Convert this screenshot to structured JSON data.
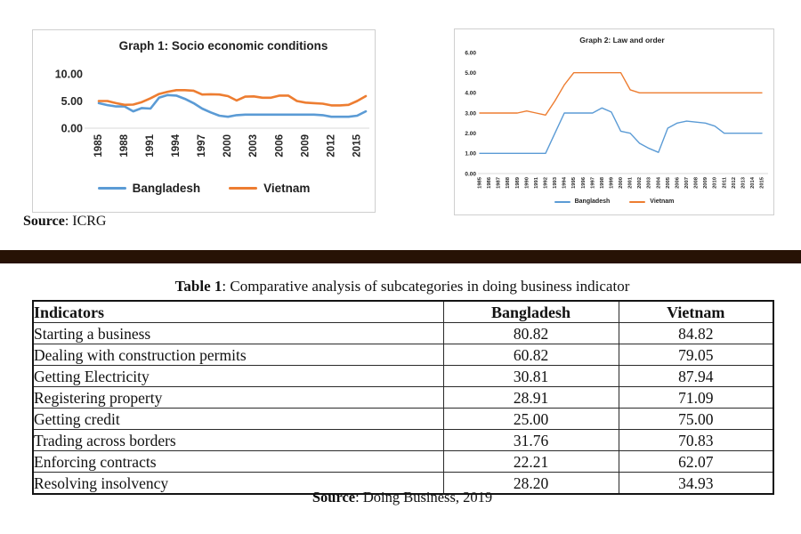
{
  "colors": {
    "bangladesh_line": "#5B9BD5",
    "vietnam_line": "#ED7D31",
    "divider_bar": "#271205",
    "axis_text": "#262626",
    "grid_line": "#d9d9d9"
  },
  "chart_data": [
    {
      "id": "graph1",
      "type": "line",
      "title": "Graph 1: Socio economic conditions",
      "x": [
        1985,
        1986,
        1987,
        1988,
        1989,
        1990,
        1991,
        1992,
        1993,
        1994,
        1995,
        1996,
        1997,
        1998,
        1999,
        2000,
        2001,
        2002,
        2003,
        2004,
        2005,
        2006,
        2007,
        2008,
        2009,
        2010,
        2011,
        2012,
        2013,
        2014,
        2015,
        2016
      ],
      "x_tick_labels": [
        "1985",
        "1988",
        "1991",
        "1994",
        "1997",
        "2000",
        "2003",
        "2006",
        "2009",
        "2012",
        "2015"
      ],
      "y_ticks": [
        0,
        5,
        10
      ],
      "y_tick_labels": [
        "0.00",
        "5.00",
        "10.00"
      ],
      "ylim": [
        0,
        10
      ],
      "grid": "baseline-only",
      "legend_position": "bottom",
      "series": [
        {
          "name": "Bangladesh",
          "color": "#5B9BD5",
          "values": [
            4.6,
            4.25,
            4.0,
            4.0,
            3.1,
            3.7,
            3.6,
            5.6,
            6.1,
            6.0,
            5.4,
            4.6,
            3.6,
            2.9,
            2.3,
            2.1,
            2.4,
            2.5,
            2.5,
            2.5,
            2.5,
            2.5,
            2.5,
            2.5,
            2.5,
            2.5,
            2.4,
            2.1,
            2.1,
            2.1,
            2.3,
            3.1
          ]
        },
        {
          "name": "Vietnam",
          "color": "#ED7D31",
          "values": [
            5.0,
            5.0,
            4.6,
            4.3,
            4.35,
            4.8,
            5.5,
            6.3,
            6.7,
            7.0,
            7.0,
            6.9,
            6.2,
            6.25,
            6.2,
            5.9,
            5.1,
            5.8,
            5.85,
            5.6,
            5.6,
            6.0,
            6.0,
            5.0,
            4.7,
            4.6,
            4.5,
            4.2,
            4.2,
            4.3,
            5.0,
            5.9
          ]
        }
      ],
      "source_label": "Source",
      "source_value": ": ICRG"
    },
    {
      "id": "graph2",
      "type": "line",
      "title": "Graph 2: Law and order",
      "x": [
        1985,
        1986,
        1987,
        1988,
        1989,
        1990,
        1991,
        1992,
        1993,
        1994,
        1995,
        1996,
        1997,
        1998,
        1999,
        2000,
        2001,
        2002,
        2003,
        2004,
        2005,
        2006,
        2007,
        2008,
        2009,
        2010,
        2011,
        2012,
        2013,
        2014,
        2015
      ],
      "x_tick_labels": [
        "1985",
        "1986",
        "1987",
        "1988",
        "1989",
        "1990",
        "1991",
        "1992",
        "1993",
        "1994",
        "1995",
        "1996",
        "1997",
        "1998",
        "1999",
        "2000",
        "2001",
        "2002",
        "2003",
        "2004",
        "2005",
        "2006",
        "2007",
        "2008",
        "2009",
        "2010",
        "2011",
        "2012",
        "2013",
        "2014",
        "2015"
      ],
      "y_ticks": [
        0,
        1,
        2,
        3,
        4,
        5,
        6
      ],
      "y_tick_labels": [
        "0.00",
        "1.00",
        "2.00",
        "3.00",
        "4.00",
        "5.00",
        "6.00"
      ],
      "ylim": [
        0,
        6
      ],
      "grid": "baseline-only",
      "legend_position": "bottom",
      "series": [
        {
          "name": "Bangladesh",
          "color": "#5B9BD5",
          "values": [
            1,
            1,
            1,
            1,
            1,
            1,
            1,
            1,
            2,
            3,
            3,
            3,
            3,
            3.25,
            3.05,
            2.1,
            2,
            1.5,
            1.25,
            1.05,
            2.25,
            2.5,
            2.6,
            2.55,
            2.5,
            2.35,
            2,
            2,
            2,
            2,
            2
          ]
        },
        {
          "name": "Vietnam",
          "color": "#ED7D31",
          "values": [
            3,
            3,
            3,
            3,
            3,
            3.1,
            3,
            2.9,
            3.6,
            4.4,
            5,
            5,
            5,
            5,
            5,
            5,
            4.15,
            4,
            4,
            4,
            4,
            4,
            4,
            4,
            4,
            4,
            4,
            4,
            4,
            4,
            4
          ]
        }
      ]
    }
  ],
  "graph1_source": {
    "label": "Source",
    "value": ": ICRG"
  },
  "table": {
    "title_bold": "Table 1",
    "title_rest": ": Comparative analysis of subcategories in doing business indicator",
    "columns": [
      "Indicators",
      "Bangladesh",
      "Vietnam"
    ],
    "rows": [
      [
        "Starting a business",
        "80.82",
        "84.82"
      ],
      [
        "Dealing with construction permits",
        "60.82",
        "79.05"
      ],
      [
        "Getting Electricity",
        "30.81",
        "87.94"
      ],
      [
        "Registering property",
        "28.91",
        "71.09"
      ],
      [
        "Getting credit",
        "25.00",
        "75.00"
      ],
      [
        "Trading across borders",
        "31.76",
        "70.83"
      ],
      [
        "Enforcing contracts",
        "22.21",
        "62.07"
      ],
      [
        "Resolving insolvency",
        "28.20",
        "34.93"
      ]
    ],
    "source_bold": "Source",
    "source_rest": ": Doing Business, 2019"
  }
}
